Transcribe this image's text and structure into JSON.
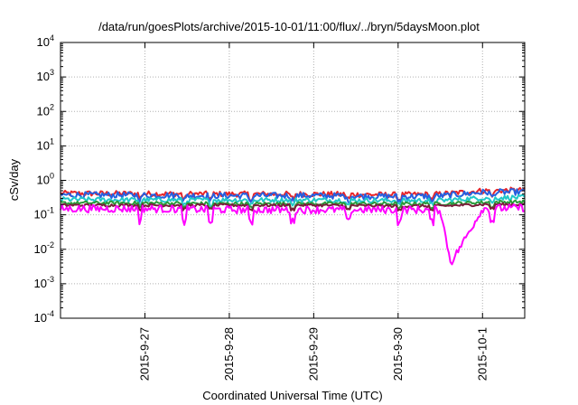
{
  "chart_data": {
    "type": "line",
    "title": "/data/run/goesPlots/archive/2015-10-01/11:00/flux/../bryn/5daysMoon.plot",
    "xlabel": "Coordinated Universal Time (UTC)",
    "ylabel": "cSv/day",
    "y_scale": "log",
    "ylim": [
      0.0001,
      10000
    ],
    "y_ticks": [
      {
        "base": "10",
        "exp": "4"
      },
      {
        "base": "10",
        "exp": "3"
      },
      {
        "base": "10",
        "exp": "2"
      },
      {
        "base": "10",
        "exp": "1"
      },
      {
        "base": "10",
        "exp": "0"
      },
      {
        "base": "10",
        "exp": "-1"
      },
      {
        "base": "10",
        "exp": "-2"
      },
      {
        "base": "10",
        "exp": "-3"
      },
      {
        "base": "10",
        "exp": "-4"
      }
    ],
    "xlim": [
      "2015-09-26T00:00",
      "2015-10-01T12:00"
    ],
    "x_ticks": [
      "2015-9-27",
      "2015-9-28",
      "2015-9-29",
      "2015-9-30",
      "2015-10-1"
    ],
    "x_tick_dates": [
      "2015-09-27",
      "2015-09-28",
      "2015-09-29",
      "2015-09-30",
      "2015-10-01"
    ],
    "grid": true,
    "legend": "none",
    "series": [
      {
        "color": "#e8262a",
        "base_level": 0.42,
        "noise": 0.16,
        "x": [
          "2015-09-26T00:00",
          "2015-09-27T00:00",
          "2015-09-28T00:00",
          "2015-09-29T00:00",
          "2015-09-30T00:00",
          "2015-09-30T12:00",
          "2015-10-01T00:00",
          "2015-10-01T12:00"
        ],
        "values": [
          0.42,
          0.41,
          0.4,
          0.4,
          0.38,
          0.4,
          0.5,
          0.52
        ]
      },
      {
        "color": "#2660e0",
        "base_level": 0.38,
        "noise": 0.18,
        "x": [
          "2015-09-26T00:00",
          "2015-09-27T00:00",
          "2015-09-28T00:00",
          "2015-09-29T00:00",
          "2015-09-30T00:00",
          "2015-09-30T12:00",
          "2015-10-01T00:00",
          "2015-10-01T12:00"
        ],
        "values": [
          0.38,
          0.37,
          0.36,
          0.36,
          0.34,
          0.35,
          0.45,
          0.46
        ]
      },
      {
        "color": "#20c8c8",
        "base_level": 0.28,
        "noise": 0.14,
        "x": [
          "2015-09-26T00:00",
          "2015-09-27T00:00",
          "2015-09-28T00:00",
          "2015-09-29T00:00",
          "2015-09-30T00:00",
          "2015-09-30T12:00",
          "2015-10-01T00:00",
          "2015-10-01T12:00"
        ],
        "values": [
          0.28,
          0.27,
          0.27,
          0.27,
          0.26,
          0.26,
          0.31,
          0.32
        ]
      },
      {
        "color": "#2a9a3a",
        "base_level": 0.22,
        "noise": 0.1,
        "x": [
          "2015-09-26T00:00",
          "2015-09-27T00:00",
          "2015-09-28T00:00",
          "2015-09-29T00:00",
          "2015-09-30T00:00",
          "2015-09-30T12:00",
          "2015-10-01T00:00",
          "2015-10-01T12:00"
        ],
        "values": [
          0.22,
          0.22,
          0.21,
          0.21,
          0.21,
          0.21,
          0.23,
          0.24
        ]
      },
      {
        "color": "#7a1e3a",
        "base_level": 0.19,
        "noise": 0.08,
        "x": [
          "2015-09-26T00:00",
          "2015-09-27T00:00",
          "2015-09-28T00:00",
          "2015-09-29T00:00",
          "2015-09-30T00:00",
          "2015-09-30T12:00",
          "2015-10-01T00:00",
          "2015-10-01T12:00"
        ],
        "values": [
          0.19,
          0.19,
          0.19,
          0.19,
          0.18,
          0.18,
          0.2,
          0.2
        ]
      },
      {
        "color": "#ff00ff",
        "base_level": 0.15,
        "noise": 0.22,
        "x": [
          "2015-09-26T00:00",
          "2015-09-27T00:00",
          "2015-09-28T00:00",
          "2015-09-29T00:00",
          "2015-09-30T00:00",
          "2015-09-30T12:00",
          "2015-09-30T15:00",
          "2015-10-01T00:00",
          "2015-10-01T12:00"
        ],
        "values": [
          0.15,
          0.15,
          0.14,
          0.14,
          0.14,
          0.14,
          0.004,
          0.15,
          0.16
        ]
      }
    ]
  }
}
